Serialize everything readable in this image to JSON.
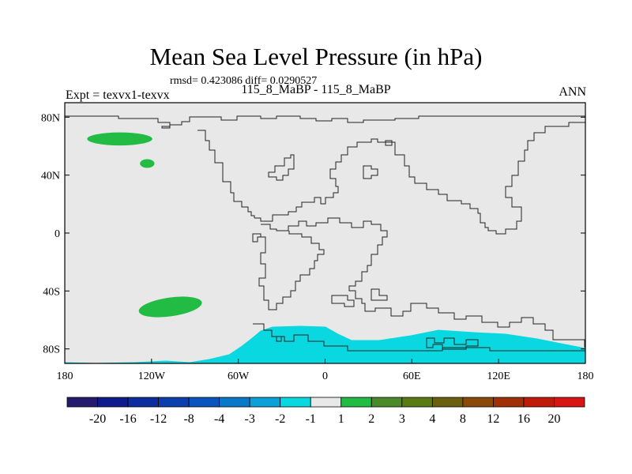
{
  "header": {
    "title": "Mean Sea Level Pressure (in hPa)",
    "stats": "rmsd= 0.423086  diff= 0.0290527",
    "experiment": "Expt = texvx1-texvx",
    "subtitle": "115_8_MaBP - 115_8_MaBP",
    "season": "ANN"
  },
  "chart_data": {
    "type": "contour-map",
    "title": "Mean Sea Level Pressure (in hPa)",
    "xlabel": "",
    "ylabel": "",
    "xlim": [
      -180,
      180
    ],
    "ylim": [
      -90,
      90
    ],
    "x_ticks": [
      {
        "value": -180,
        "label": "180"
      },
      {
        "value": -120,
        "label": "120W"
      },
      {
        "value": -60,
        "label": "60W"
      },
      {
        "value": 0,
        "label": "0"
      },
      {
        "value": 60,
        "label": "60E"
      },
      {
        "value": 120,
        "label": "120E"
      },
      {
        "value": 180,
        "label": "180"
      }
    ],
    "y_ticks": [
      {
        "value": 80,
        "label": "80N"
      },
      {
        "value": 40,
        "label": "40N"
      },
      {
        "value": 0,
        "label": "0"
      },
      {
        "value": -40,
        "label": "40S"
      },
      {
        "value": -80,
        "label": "80S"
      }
    ],
    "background_color": "#e8e8e8",
    "colorbar": {
      "boundaries": [
        "-20",
        "-16",
        "-12",
        "-8",
        "-4",
        "-3",
        "-2",
        "-1",
        "1",
        "2",
        "3",
        "4",
        "8",
        "12",
        "16",
        "20"
      ],
      "colors": [
        "#241a6e",
        "#0f1b8c",
        "#0b2d9e",
        "#0b3fae",
        "#0a55bd",
        "#0a78c8",
        "#0aa0d8",
        "#0ad8e0",
        "#e8e8e8",
        "#22bb44",
        "#4a8a28",
        "#5a7a14",
        "#6a6010",
        "#8a4a0a",
        "#a03008",
        "#c01a0a",
        "#d81414"
      ]
    },
    "regions": [
      {
        "name": "north-pacific-high",
        "range": "1 to 2",
        "color": "#22bb44",
        "center": [
          -142,
          65
        ],
        "lon_span": 45,
        "lat_span": 9
      },
      {
        "name": "pacific-small-high",
        "range": "1 to 2",
        "color": "#22bb44",
        "center": [
          -123,
          48
        ],
        "lon_span": 10,
        "lat_span": 6
      },
      {
        "name": "south-pacific-high",
        "range": "1 to 2",
        "color": "#22bb44",
        "center": [
          -107,
          -51
        ],
        "lon_span": 44,
        "lat_span": 13
      },
      {
        "name": "southern-ocean-low",
        "range": "-2 to -1",
        "color": "#0ad8e0",
        "lon_range": [
          -180,
          180
        ],
        "lat_range": [
          -90,
          -63
        ]
      }
    ]
  }
}
